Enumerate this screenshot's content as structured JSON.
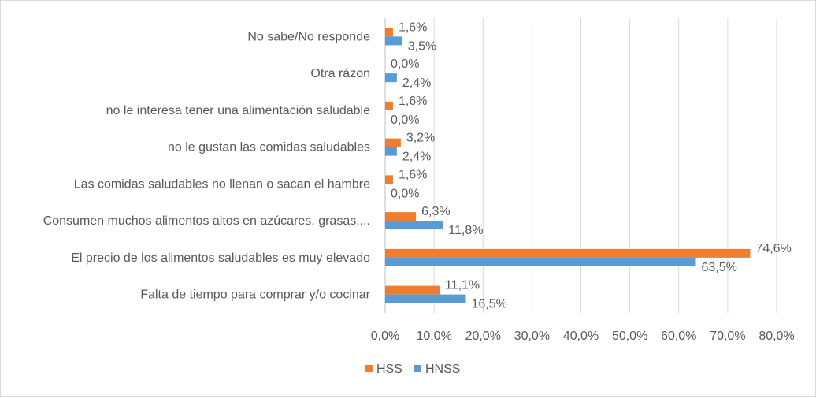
{
  "chart_data": {
    "type": "bar",
    "orientation": "horizontal",
    "title": "",
    "xlabel": "",
    "ylabel": "",
    "categories": [
      "No sabe/No responde",
      "Otra rázon",
      "no le interesa tener una alimentación saludable",
      "no le gustan las comidas saludables",
      "Las comidas saludables no llenan o sacan el hambre",
      "Consumen muchos alimentos altos en azúcares, grasas,...",
      "El precio de los alimentos saludables es muy elevado",
      "Falta de tiempo para comprar y/o cocinar"
    ],
    "series": [
      {
        "name": "HSS",
        "color": "#ed7d31",
        "values": [
          1.6,
          0.0,
          1.6,
          3.2,
          1.6,
          6.3,
          74.6,
          11.1
        ],
        "labels": [
          "1,6%",
          "0,0%",
          "1,6%",
          "3,2%",
          "1,6%",
          "6,3%",
          "74,6%",
          "11,1%"
        ]
      },
      {
        "name": "HNSS",
        "color": "#5b9bd5",
        "values": [
          3.5,
          2.4,
          0.0,
          2.4,
          0.0,
          11.8,
          63.5,
          16.5
        ],
        "labels": [
          "3,5%",
          "2,4%",
          "0,0%",
          "2,4%",
          "0,0%",
          "11,8%",
          "63,5%",
          "16,5%"
        ]
      }
    ],
    "xlim": [
      0,
      80
    ],
    "xticks": [
      "0,0%",
      "10,0%",
      "20,0%",
      "30,0%",
      "40,0%",
      "50,0%",
      "60,0%",
      "70,0%",
      "80,0%"
    ],
    "grid": true,
    "legend_position": "bottom"
  }
}
